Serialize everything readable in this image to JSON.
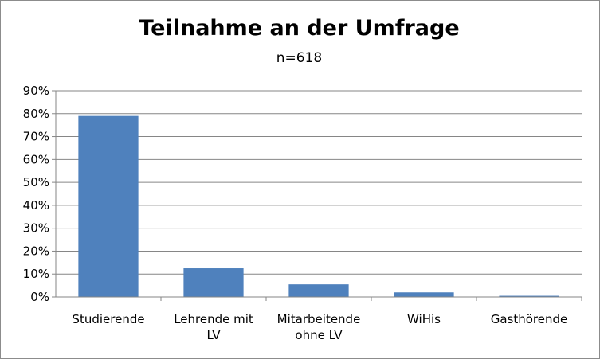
{
  "chart_data": {
    "type": "bar",
    "title": "Teilnahme an der Umfrage",
    "subtitle": "n=618",
    "categories": [
      [
        "Studierende"
      ],
      [
        "Lehrende mit",
        "LV"
      ],
      [
        "Mitarbeitende",
        "ohne LV"
      ],
      [
        "WiHis"
      ],
      [
        "Gasthörende"
      ]
    ],
    "values": [
      79,
      12.5,
      5.5,
      2,
      0.5
    ],
    "ylim": [
      0,
      90
    ],
    "yticks": [
      0,
      10,
      20,
      30,
      40,
      50,
      60,
      70,
      80,
      90
    ],
    "ytick_format": "percent",
    "grid": true,
    "legend": "none",
    "bar_color": "#4f81bd",
    "grid_color": "#868686"
  }
}
